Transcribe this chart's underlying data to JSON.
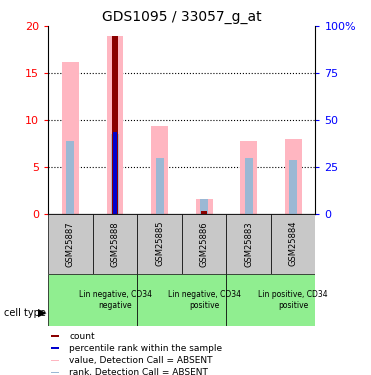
{
  "title": "GDS1095 / 33057_g_at",
  "samples": [
    "GSM25887",
    "GSM25888",
    "GSM25885",
    "GSM25886",
    "GSM25883",
    "GSM25884"
  ],
  "cell_types": [
    {
      "label": "Lin negative, CD34\nnegative",
      "span": [
        0,
        2
      ],
      "color": "#90EE90"
    },
    {
      "label": "Lin negative, CD34\npositive",
      "span": [
        2,
        4
      ],
      "color": "#90EE90"
    },
    {
      "label": "Lin positive, CD34\npositive",
      "span": [
        4,
        6
      ],
      "color": "#90EE90"
    }
  ],
  "value_absent": [
    16.2,
    19.0,
    9.4,
    1.6,
    7.8,
    8.0
  ],
  "rank_absent": [
    7.8,
    8.5,
    6.0,
    1.55,
    6.0,
    5.7
  ],
  "count": [
    null,
    19.0,
    null,
    0.3,
    null,
    null
  ],
  "percentile_rank": [
    null,
    8.7,
    null,
    null,
    null,
    null
  ],
  "ylim": [
    0,
    20
  ],
  "yticks_left": [
    0,
    5,
    10,
    15,
    20
  ],
  "color_count": "#8B0000",
  "color_percentile": "#0000CD",
  "color_value_absent": "#FFB6C1",
  "color_rank_absent": "#9BB8D4",
  "figsize": [
    3.71,
    3.75
  ],
  "dpi": 100
}
